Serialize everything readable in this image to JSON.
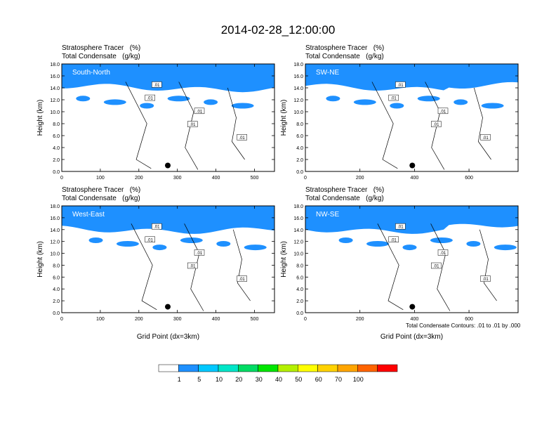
{
  "figure": {
    "title": "2014-02-28_12:00:00",
    "footnote": "Total Condensate Contours: .01 to .01 by .000"
  },
  "colorbar": {
    "labels": [
      "1",
      "5",
      "10",
      "20",
      "30",
      "40",
      "50",
      "60",
      "70",
      "100"
    ],
    "colors": [
      "#ffffff",
      "#1e90ff",
      "#00c8ff",
      "#00e6c8",
      "#00dc64",
      "#00e600",
      "#b4f000",
      "#ffff00",
      "#ffd200",
      "#ffa500",
      "#ff6400",
      "#ff0000"
    ]
  },
  "chart_data": [
    {
      "type": "heatmap",
      "label": "South-North",
      "title_left": "Stratosphere Tracer   (%)",
      "title_left2": "Total Condensate   (g/kg)",
      "xlabel": "",
      "ylabel": "Height (km)",
      "xlim": [
        0,
        552
      ],
      "ylim": [
        0,
        18
      ],
      "xticks": [
        "0",
        "100",
        "200",
        "300",
        "400",
        "500"
      ],
      "yticks": [
        "0.0",
        "2.0",
        "4.0",
        "6.0",
        "8.0",
        "10.0",
        "12.0",
        "14.0",
        "16.0",
        "18.0"
      ],
      "contour_labels": [
        ".01",
        ".01",
        ".01",
        ".01",
        ".01"
      ],
      "marker": {
        "x": 275,
        "y": 1.0
      }
    },
    {
      "type": "heatmap",
      "label": "SW-NE",
      "title_left": "Stratosphere Tracer   (%)",
      "title_left2": "Total Condensate   (g/kg)",
      "xlabel": "",
      "ylabel": "Height (km)",
      "xlim": [
        0,
        780
      ],
      "ylim": [
        0,
        18
      ],
      "xticks": [
        "0",
        "200",
        "400",
        "600"
      ],
      "yticks": [
        "0.0",
        "2.0",
        "4.0",
        "6.0",
        "8.0",
        "10.0",
        "12.0",
        "14.0",
        "16.0",
        "18.0"
      ],
      "contour_labels": [
        ".01",
        ".01",
        ".01",
        ".01",
        ".01"
      ],
      "marker": {
        "x": 392,
        "y": 1.0
      }
    },
    {
      "type": "heatmap",
      "label": "West-East",
      "title_left": "Stratosphere Tracer   (%)",
      "title_left2": "Total Condensate   (g/kg)",
      "xlabel": "Grid Point (dx=3km)",
      "ylabel": "Height (km)",
      "xlim": [
        0,
        552
      ],
      "ylim": [
        0,
        18
      ],
      "xticks": [
        "0",
        "100",
        "200",
        "300",
        "400",
        "500"
      ],
      "yticks": [
        "0.0",
        "2.0",
        "4.0",
        "6.0",
        "8.0",
        "10.0",
        "12.0",
        "14.0",
        "16.0",
        "18.0"
      ],
      "contour_labels": [
        ".01",
        ".01",
        ".01",
        ".01",
        ".01"
      ],
      "marker": {
        "x": 275,
        "y": 1.0
      }
    },
    {
      "type": "heatmap",
      "label": "NW-SE",
      "title_left": "Stratosphere Tracer   (%)",
      "title_left2": "Total Condensate   (g/kg)",
      "xlabel": "Grid Point (dx=3km)",
      "ylabel": "Height (km)",
      "xlim": [
        0,
        780
      ],
      "ylim": [
        0,
        18
      ],
      "xticks": [
        "0",
        "200",
        "400",
        "600"
      ],
      "yticks": [
        "0.0",
        "2.0",
        "4.0",
        "6.0",
        "8.0",
        "10.0",
        "12.0",
        "14.0",
        "16.0",
        "18.0"
      ],
      "contour_labels": [
        ".01",
        ".01",
        ".01",
        ".01",
        ".01"
      ],
      "marker": {
        "x": 392,
        "y": 1.0
      }
    }
  ]
}
